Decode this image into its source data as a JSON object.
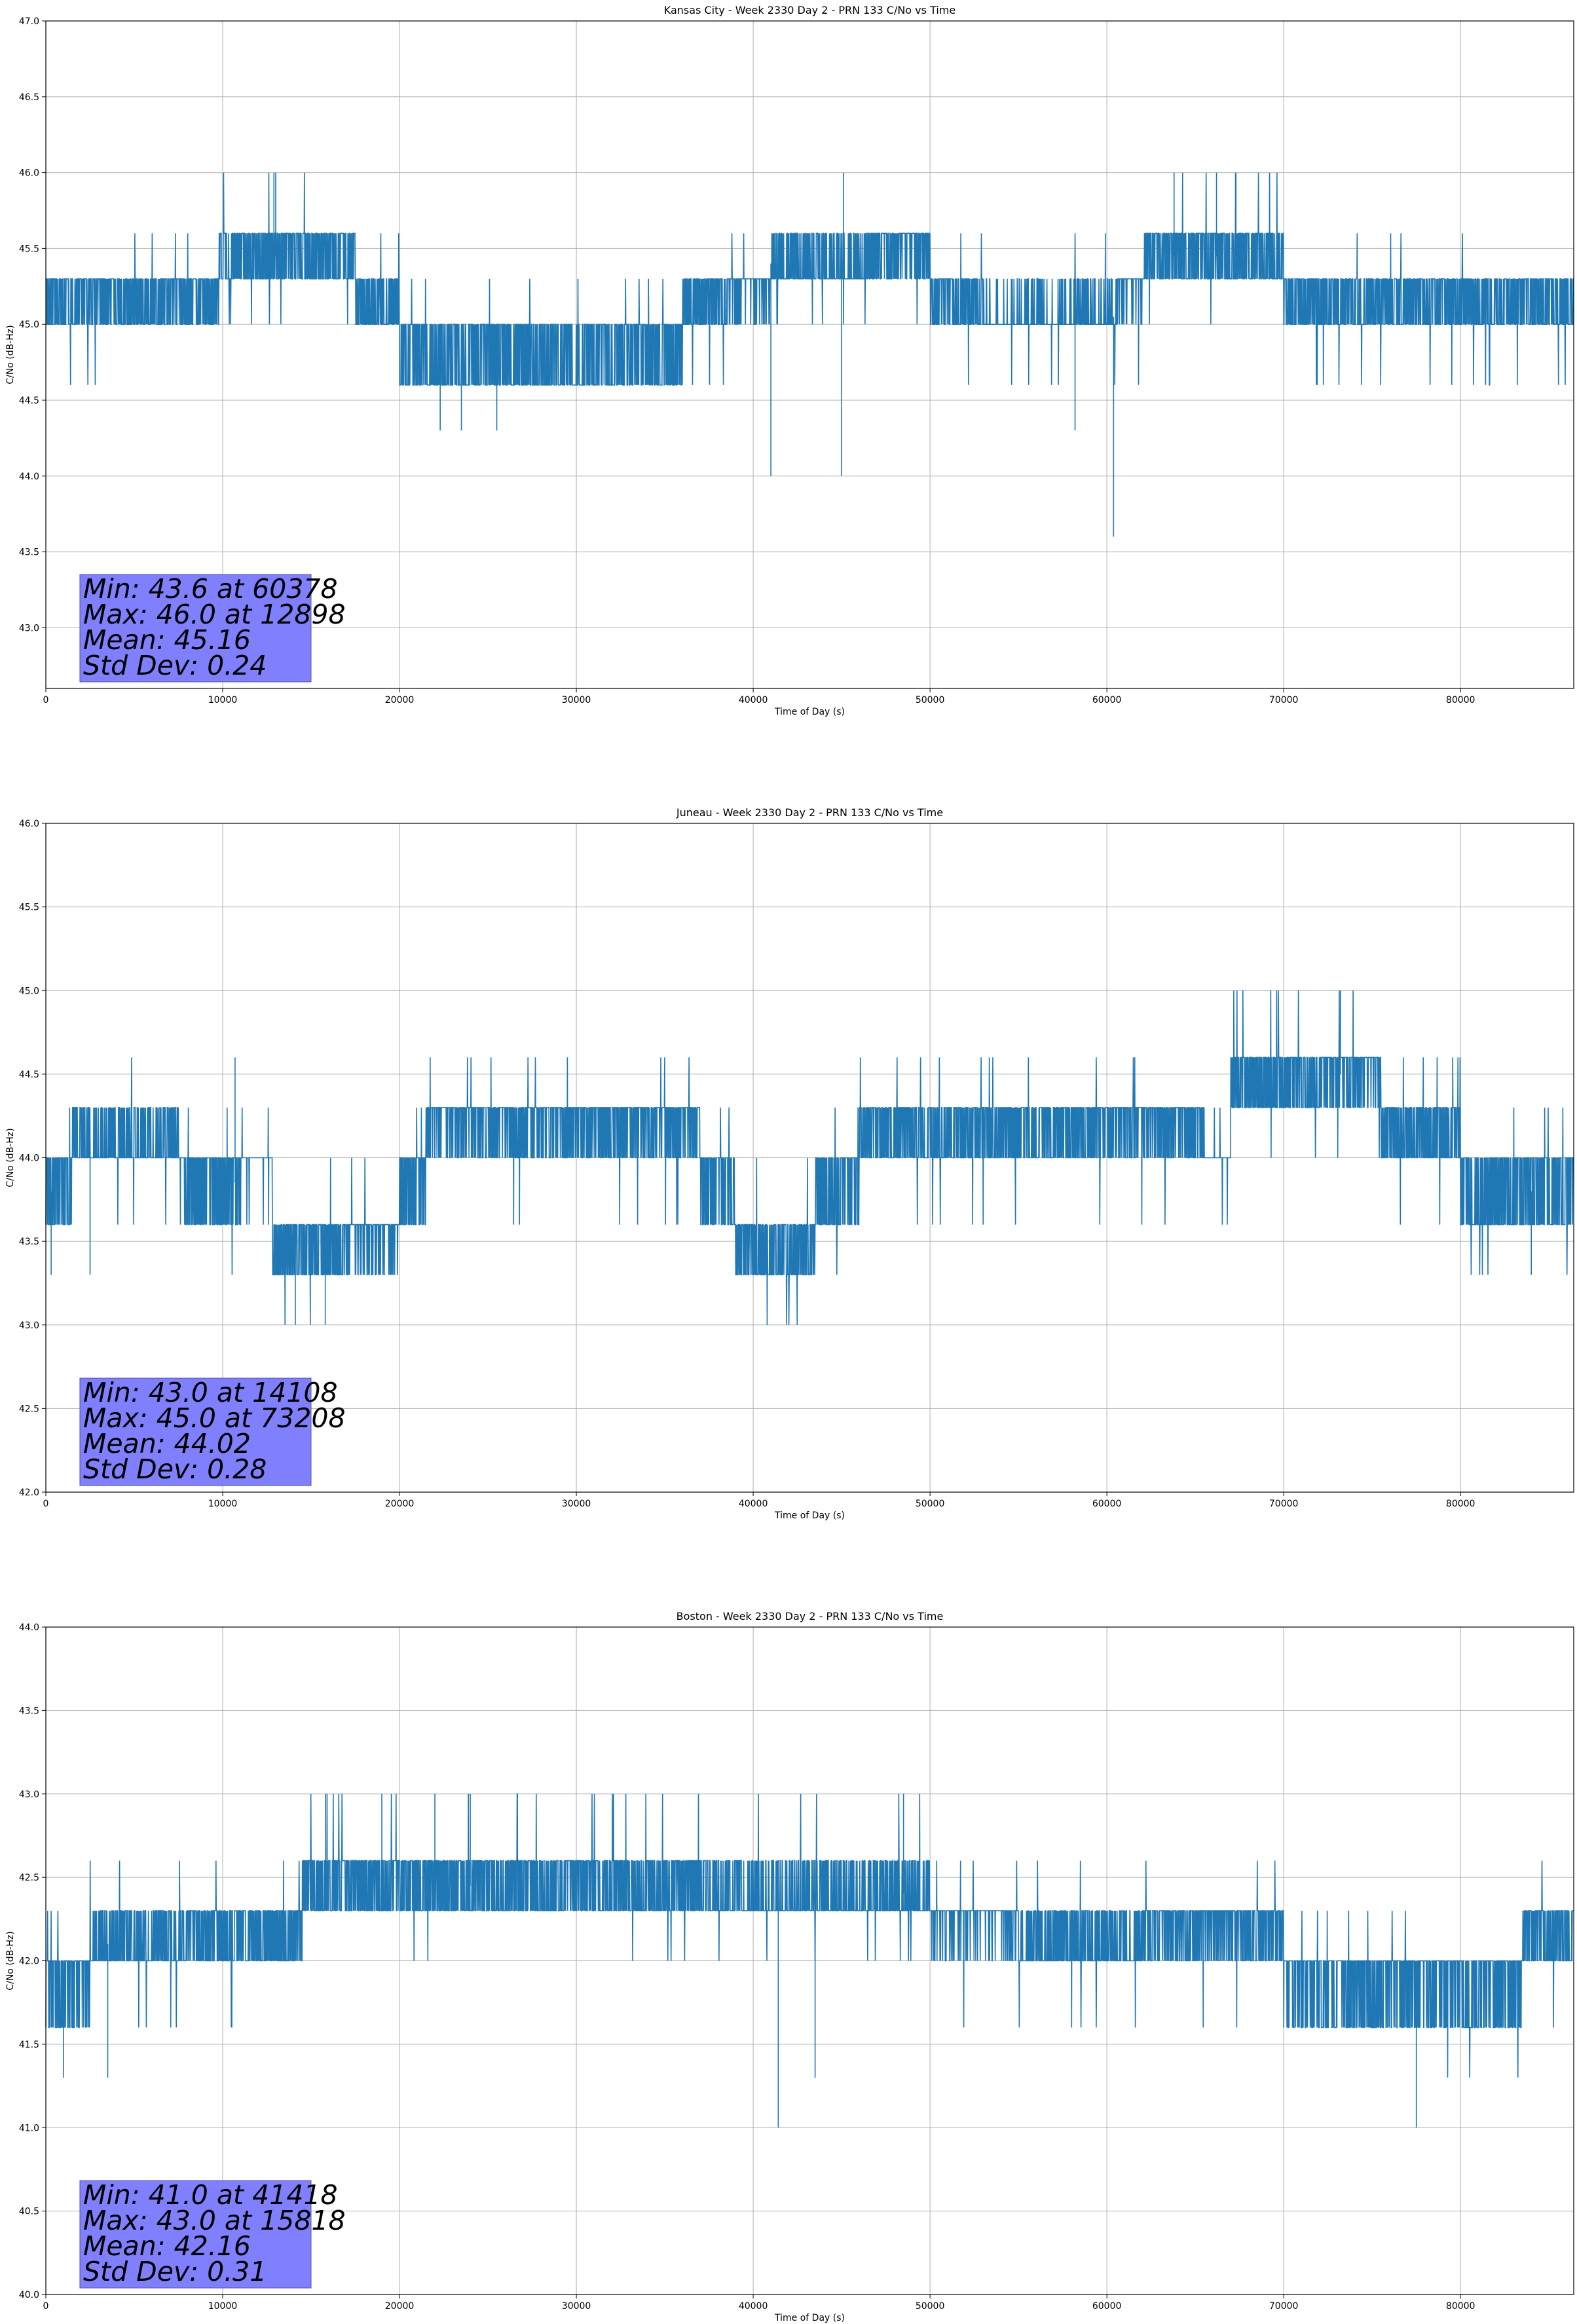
{
  "chart_data": [
    {
      "type": "line",
      "title": "Kansas City - Week 2330 Day 2 - PRN 133 C/No vs Time",
      "xlabel": "Time of Day (s)",
      "ylabel": "C/No (dB-Hz)",
      "xlim": [
        0,
        86400
      ],
      "ylim": [
        42.6,
        47.0
      ],
      "xticks": [
        0,
        10000,
        20000,
        30000,
        40000,
        50000,
        60000,
        70000,
        80000
      ],
      "yticks": [
        43.0,
        43.5,
        44.0,
        44.5,
        45.0,
        45.5,
        46.0,
        46.5,
        47.0
      ],
      "grid": true,
      "line_color": "#1f77b4",
      "stats_box": {
        "min": "Min: 43.6 at 60378",
        "max": "Max: 46.0 at 12898",
        "mean": "Mean: 45.16",
        "std": "Std Dev: 0.24",
        "color": "#8080ff"
      },
      "series": [
        {
          "levels": [
            44.6,
            45.0,
            45.3,
            45.6,
            46.0
          ],
          "segments": [
            [
              0,
              45.15
            ],
            [
              9800,
              45.45
            ],
            [
              17500,
              45.15
            ],
            [
              20000,
              44.8
            ],
            [
              36000,
              45.15
            ],
            [
              38500,
              45.25
            ],
            [
              41000,
              45.4
            ],
            [
              46000,
              45.45
            ],
            [
              50000,
              45.15
            ],
            [
              53000,
              45.05
            ],
            [
              60500,
              45.25
            ],
            [
              62000,
              45.45
            ],
            [
              70000,
              45.15
            ],
            [
              86400,
              45.2
            ]
          ],
          "outliers": [
            [
              41000,
              44.0
            ],
            [
              45000,
              44.0
            ],
            [
              58200,
              44.3
            ],
            [
              60378,
              43.6
            ],
            [
              45100,
              46.0
            ],
            [
              63800,
              46.0
            ],
            [
              66200,
              46.0
            ],
            [
              67300,
              46.0
            ],
            [
              12898,
              46.0
            ],
            [
              13000,
              46.0
            ],
            [
              22300,
              44.3
            ],
            [
              23500,
              44.3
            ],
            [
              25500,
              44.3
            ]
          ]
        }
      ]
    },
    {
      "type": "line",
      "title": "Juneau - Week 2330 Day 2 - PRN 133 C/No vs Time",
      "xlabel": "Time of Day (s)",
      "ylabel": "C/No (dB-Hz)",
      "xlim": [
        0,
        86400
      ],
      "ylim": [
        42.0,
        46.0
      ],
      "xticks": [
        0,
        10000,
        20000,
        30000,
        40000,
        50000,
        60000,
        70000,
        80000
      ],
      "yticks": [
        42.0,
        42.5,
        43.0,
        43.5,
        44.0,
        44.5,
        45.0,
        45.5,
        46.0
      ],
      "grid": true,
      "line_color": "#1f77b4",
      "stats_box": {
        "min": "Min: 43.0 at 14108",
        "max": "Max: 45.0 at 73208",
        "mean": "Mean: 44.02",
        "std": "Std Dev: 0.28",
        "color": "#8080ff"
      },
      "series": [
        {
          "levels": [
            43.0,
            43.3,
            43.6,
            44.0,
            44.3,
            44.6,
            45.0
          ],
          "segments": [
            [
              0,
              43.8
            ],
            [
              1500,
              44.1
            ],
            [
              7500,
              43.85
            ],
            [
              11000,
              44.0
            ],
            [
              12800,
              43.45
            ],
            [
              17000,
              43.55
            ],
            [
              20000,
              43.85
            ],
            [
              21500,
              44.2
            ],
            [
              37000,
              43.85
            ],
            [
              39000,
              43.45
            ],
            [
              43500,
              43.85
            ],
            [
              46000,
              44.15
            ],
            [
              58000,
              44.2
            ],
            [
              65500,
              44.0
            ],
            [
              67000,
              44.45
            ],
            [
              72000,
              44.5
            ],
            [
              75500,
              44.15
            ],
            [
              80000,
              43.8
            ],
            [
              86400,
              44.0
            ]
          ],
          "outliers": [
            [
              14108,
              43.0
            ],
            [
              15800,
              43.0
            ],
            [
              73208,
              45.0
            ],
            [
              10700,
              44.6
            ],
            [
              300,
              43.3
            ],
            [
              2500,
              43.3
            ],
            [
              84000,
              43.3
            ]
          ]
        }
      ]
    },
    {
      "type": "line",
      "title": "Boston - Week 2330 Day 2 - PRN 133 C/No vs Time",
      "xlabel": "Time of Day (s)",
      "ylabel": "C/No (dB-Hz)",
      "xlim": [
        0,
        86400
      ],
      "ylim": [
        40.0,
        44.0
      ],
      "xticks": [
        0,
        10000,
        20000,
        30000,
        40000,
        50000,
        60000,
        70000,
        80000
      ],
      "yticks": [
        40.0,
        40.5,
        41.0,
        41.5,
        42.0,
        42.5,
        43.0,
        43.5,
        44.0
      ],
      "grid": true,
      "line_color": "#1f77b4",
      "stats_box": {
        "min": "Min: 41.0 at 41418",
        "max": "Max: 43.0 at 15818",
        "mean": "Mean: 42.16",
        "std": "Std Dev: 0.31",
        "color": "#8080ff"
      },
      "series": [
        {
          "levels": [
            41.0,
            41.3,
            41.6,
            42.0,
            42.3,
            42.6,
            43.0
          ],
          "segments": [
            [
              0,
              41.85
            ],
            [
              2500,
              42.1
            ],
            [
              6000,
              42.15
            ],
            [
              14500,
              42.45
            ],
            [
              38000,
              42.4
            ],
            [
              50000,
              42.25
            ],
            [
              55000,
              42.1
            ],
            [
              62000,
              42.2
            ],
            [
              70000,
              41.85
            ],
            [
              83500,
              42.15
            ],
            [
              86400,
              42.15
            ]
          ],
          "outliers": [
            [
              41418,
              41.0
            ],
            [
              77500,
              41.0
            ],
            [
              15818,
              43.0
            ],
            [
              19000,
              43.0
            ],
            [
              22000,
              43.0
            ],
            [
              24000,
              43.0
            ],
            [
              48500,
              43.0
            ],
            [
              1000,
              41.3
            ],
            [
              3500,
              41.3
            ],
            [
              43500,
              41.3
            ]
          ]
        }
      ]
    }
  ]
}
